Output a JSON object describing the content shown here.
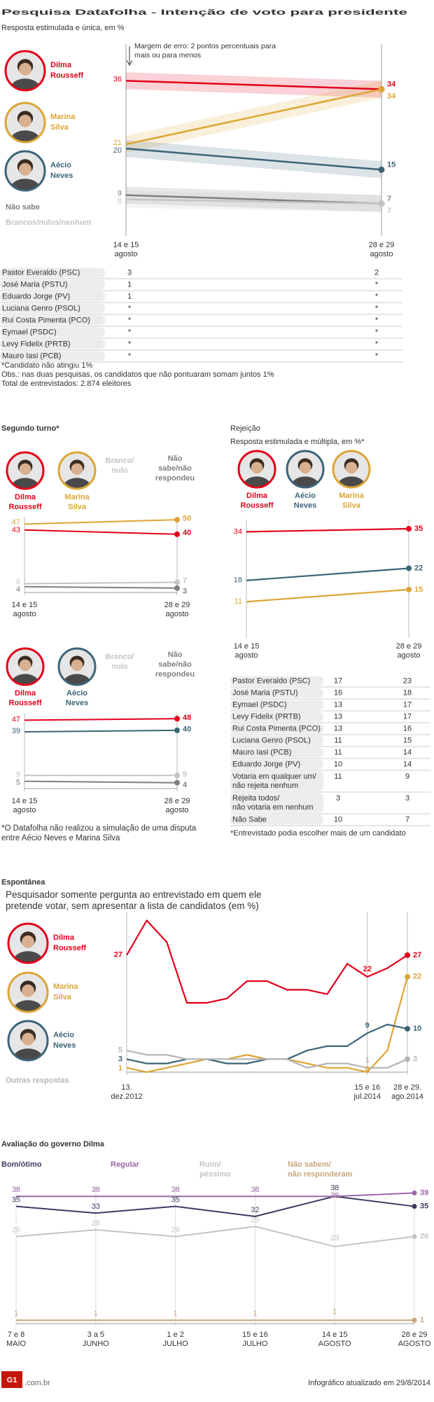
{
  "header": {
    "title": "Pesquisa Datafolha - Intenção de voto para presidente",
    "subtitle": "Resposta estimulada e única, em %"
  },
  "chart_data": [
    {
      "type": "line",
      "categories": [
        "14 e 15 agosto",
        "28 e 29 agosto"
      ],
      "ylim": [
        0,
        43
      ],
      "annotation": "Margem de erro: 2 pontos percentuais para mais ou para menos",
      "error_margin": 2,
      "series": [
        {
          "name": "Dilma Rousseff",
          "color": "#e2001a",
          "photo": true,
          "values": [
            36,
            34
          ]
        },
        {
          "name": "Marina Silva",
          "color": "#dca534",
          "photo": true,
          "values": [
            21,
            34
          ]
        },
        {
          "name": "Aécio Neves",
          "color": "#3c6478",
          "photo": true,
          "values": [
            20,
            15
          ]
        },
        {
          "name": "Não sabe",
          "color": "#7f7f7f",
          "values": [
            9,
            7
          ]
        },
        {
          "name": "Brancos/nulos/nenhum",
          "color": "#c4c4c4",
          "values": [
            8,
            7
          ]
        }
      ]
    },
    {
      "type": "line",
      "title": "Segundo turno*",
      "categories": [
        "14 e 15 agosto",
        "28 e 29 agosto"
      ],
      "ylim": [
        0,
        52
      ],
      "series": [
        {
          "name": "Dilma Rousseff",
          "color": "#e2001a",
          "photo": true,
          "values": [
            43,
            40
          ]
        },
        {
          "name": "Marina Silva",
          "color": "#dca534",
          "photo": true,
          "values": [
            47,
            50
          ]
        },
        {
          "name": "Branco/ nulo",
          "color": "#c4c4c4",
          "values": [
            6,
            7
          ]
        },
        {
          "name": "Não sabe/não respondeu",
          "color": "#7f7f7f",
          "values": [
            4,
            3
          ]
        }
      ]
    },
    {
      "type": "line",
      "categories": [
        "14 e 15 agosto",
        "28 e 29 agosto"
      ],
      "ylim": [
        0,
        52
      ],
      "note": "*O Datafolha não realizou a simulação de uma disputa entre Aécio Neves e Marina Silva",
      "series": [
        {
          "name": "Dilma Rousseff",
          "color": "#e2001a",
          "photo": true,
          "values": [
            47,
            48
          ]
        },
        {
          "name": "Aécio Neves",
          "color": "#3c6478",
          "photo": true,
          "values": [
            39,
            40
          ]
        },
        {
          "name": "Branco/ nulo",
          "color": "#c4c4c4",
          "values": [
            9,
            9
          ]
        },
        {
          "name": "Não sabe/não respondeu",
          "color": "#7f7f7f",
          "values": [
            5,
            4
          ]
        }
      ]
    },
    {
      "type": "line",
      "title": "Rejeição",
      "subtitle": "Resposta estimulada e múltipla, em %*",
      "categories": [
        "14 e 15 agosto",
        "28 e 29 agosto"
      ],
      "ylim": [
        0,
        38
      ],
      "note": "*Entrevistado podia escolher mais de um candidato",
      "series": [
        {
          "name": "Dilma Rousseff",
          "color": "#e2001a",
          "photo": true,
          "values": [
            34,
            35
          ]
        },
        {
          "name": "Aécio Neves",
          "color": "#3c6478",
          "photo": true,
          "values": [
            18,
            22
          ]
        },
        {
          "name": "Marina Silva",
          "color": "#dca534",
          "photo": true,
          "values": [
            11,
            15
          ]
        }
      ]
    },
    {
      "type": "line",
      "title": "Espontânea",
      "subtitle": "Pesquisador somente pergunta ao entrevistado em quem ele pretende votar, sem apresentar a lista de candidatos (em %)",
      "categories": [
        "13. dez.2012",
        null,
        null,
        null,
        null,
        null,
        null,
        null,
        null,
        null,
        null,
        null,
        "15 e 16 jul.2014",
        null,
        "28 e 29. ago.2014"
      ],
      "ylim": [
        0,
        37
      ],
      "series": [
        {
          "name": "Dilma Rousseff",
          "color": "#e2001a",
          "photo": true,
          "values": [
            27,
            35,
            30,
            16,
            16,
            17,
            21,
            21,
            19,
            19,
            18,
            25,
            22,
            24,
            27
          ],
          "value_labels": [
            "27",
            null,
            null,
            null,
            null,
            null,
            null,
            null,
            null,
            null,
            null,
            null,
            "22",
            null,
            "27"
          ]
        },
        {
          "name": "Marina Silva",
          "color": "#dca534",
          "photo": true,
          "values": [
            1,
            0,
            1,
            2,
            3,
            3,
            4,
            3,
            3,
            2,
            1,
            1,
            0,
            5,
            22
          ],
          "value_labels": [
            "1",
            null,
            null,
            null,
            null,
            null,
            null,
            null,
            null,
            null,
            null,
            null,
            "0",
            null,
            "22"
          ]
        },
        {
          "name": "Aécio Neves",
          "color": "#3c6478",
          "photo": true,
          "values": [
            3,
            2,
            2,
            3,
            3,
            2,
            2,
            3,
            3,
            5,
            6,
            6,
            9,
            11,
            10
          ],
          "value_labels": [
            "3",
            null,
            null,
            null,
            null,
            null,
            null,
            null,
            null,
            null,
            null,
            null,
            "9",
            null,
            "10"
          ]
        },
        {
          "name": "Outras respostas",
          "color": "#b5b5b5",
          "values": [
            5,
            4,
            4,
            3,
            3,
            3,
            3,
            3,
            3,
            1,
            2,
            2,
            1,
            1,
            3
          ],
          "value_labels": [
            "5",
            null,
            null,
            null,
            null,
            null,
            null,
            null,
            null,
            null,
            null,
            null,
            "1",
            null,
            "3"
          ]
        }
      ]
    },
    {
      "type": "line",
      "title": "Avaliação do governo Dilma",
      "categories": [
        "7 e 8 MAIO",
        "3 a 5 JUNHO",
        "1 e 2 JULHO",
        "15 e 16 JULHO",
        "14 e 15 AGOSTO",
        "28 e 29 AGOSTO"
      ],
      "ylim": [
        0,
        41
      ],
      "series": [
        {
          "name": "Bom/ótimo",
          "color": "#3d3b63",
          "values": [
            35,
            33,
            35,
            32,
            38,
            35
          ]
        },
        {
          "name": "Regular",
          "color": "#9c66a8",
          "values": [
            38,
            38,
            38,
            38,
            38,
            39
          ]
        },
        {
          "name": "Ruim/ péssimo",
          "color": "#c4c4c4",
          "values": [
            26,
            28,
            26,
            29,
            23,
            26
          ]
        },
        {
          "name": "Não sabem/ não responderam",
          "color": "#c8a67c",
          "values": [
            1,
            1,
            1,
            1,
            1,
            1
          ]
        }
      ]
    }
  ],
  "tables": [
    {
      "rows": [
        [
          "Pastor Everaldo (PSC)",
          3,
          2
        ],
        [
          "José Maria (PSTU)",
          1,
          "*"
        ],
        [
          "Eduardo Jorge (PV)",
          1,
          "*"
        ],
        [
          "Luciana Genro (PSOL)",
          "*",
          "*"
        ],
        [
          "Rui Costa Pimenta (PCO)",
          "*",
          "*"
        ],
        [
          "Eymael (PSDC)",
          "*",
          "*"
        ],
        [
          "Levy Fidelix (PRTB)",
          "*",
          "*"
        ],
        [
          "Mauro Iasi (PCB)",
          "*",
          "*"
        ]
      ]
    },
    {
      "rows": [
        [
          "Pastor Everaldo (PSC)",
          17,
          23
        ],
        [
          "José Maria (PSTU)",
          16,
          18
        ],
        [
          "Eymael (PSDC)",
          13,
          17
        ],
        [
          "Levy Fidelix (PRTB)",
          13,
          17
        ],
        [
          "Rui Costa Pimenta (PCO)",
          13,
          16
        ],
        [
          "Luciana Genro (PSOL)",
          11,
          15
        ],
        [
          "Mauro Iasi (PCB)",
          11,
          14
        ],
        [
          "Eduardo Jorge (PV)",
          10,
          14
        ],
        [
          "Votaria em qualquer um/ não rejeita nenhum",
          11,
          9
        ],
        [
          "Rejeita todos/ não votaria em nenhum",
          3,
          3
        ],
        [
          "Não Sabe",
          10,
          7
        ]
      ]
    }
  ],
  "notes": [
    "*Candidato não atingiu 1%",
    "Obs.: nas duas pesquisas, os candidatos que não pontuaram somam juntos 1%",
    "Total de entrevistados: 2.874 eleitores"
  ],
  "footer": {
    "logo": "G1",
    "domain": ".com.br",
    "updated": "Infográfico atualizado em 29/8/2014"
  }
}
